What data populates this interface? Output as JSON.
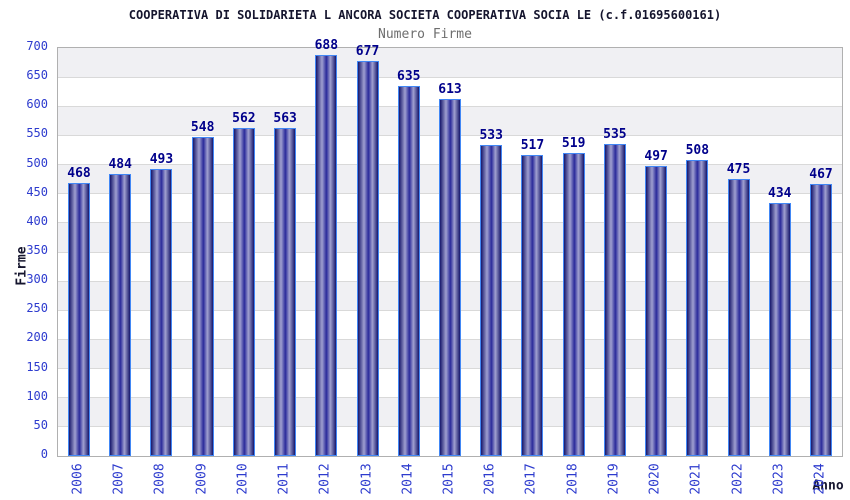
{
  "chart_data": {
    "type": "bar",
    "title": "COOPERATIVA DI SOLIDARIETA L ANCORA SOCIETA COOPERATIVA SOCIA LE (c.f.01695600161)",
    "subtitle": "Numero Firme",
    "xlabel": "Anno",
    "ylabel": "Firme",
    "categories": [
      "2006",
      "2007",
      "2008",
      "2009",
      "2010",
      "2011",
      "2012",
      "2013",
      "2014",
      "2015",
      "2016",
      "2017",
      "2018",
      "2019",
      "2020",
      "2021",
      "2022",
      "2023",
      "2024"
    ],
    "values": [
      468,
      484,
      493,
      548,
      562,
      563,
      688,
      677,
      635,
      613,
      533,
      517,
      519,
      535,
      497,
      508,
      475,
      434,
      467
    ],
    "ylim": [
      0,
      700
    ],
    "ytick_step": 50,
    "yticks": [
      0,
      50,
      100,
      150,
      200,
      250,
      300,
      350,
      400,
      450,
      500,
      550,
      600,
      650,
      700
    ],
    "grid": true,
    "legend": "none",
    "colors": {
      "bar_dark": "#16166b",
      "bar_mid": "#2a2a9a",
      "bar_light": "#a0a0d0",
      "bar_border": "#4187f5",
      "value_label": "#00008b",
      "tick_label": "#2d3bce",
      "title": "#15152e",
      "subtitle": "#6e6e6e",
      "band_gray": "#f0f0f3",
      "band_white": "#ffffff",
      "grid_line": "#d9d9d9",
      "axis_line": "#b0b0b0",
      "background": "#ffffff"
    }
  }
}
